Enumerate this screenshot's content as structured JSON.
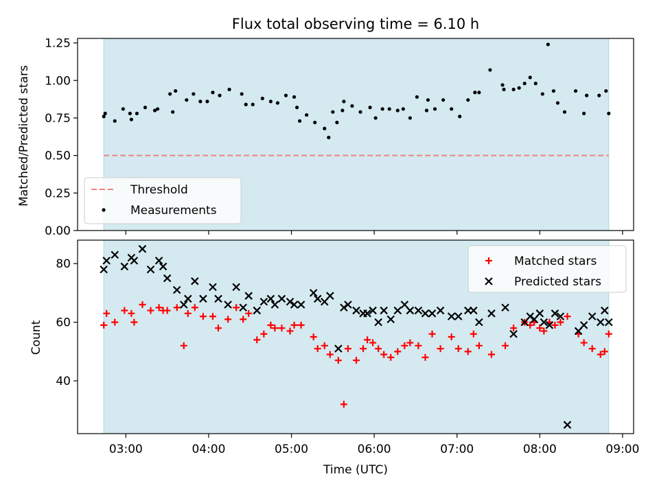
{
  "chart_data": [
    {
      "type": "scatter",
      "title": "Flux total observing time = 6.10 h",
      "ylabel": "Matched/Predicted stars",
      "xlabel": "",
      "ylim": [
        0,
        1.28
      ],
      "yticks": [
        "0.00",
        "0.25",
        "0.50",
        "0.75",
        "1.00",
        "1.25"
      ],
      "ytick_values": [
        0,
        0.25,
        0.5,
        0.75,
        1.0,
        1.25
      ],
      "shaded_span": [
        "02:44",
        "08:50"
      ],
      "threshold": 0.5,
      "legend": {
        "placement": "lower-left",
        "entries": [
          "Threshold",
          "Measurements"
        ]
      },
      "series": [
        {
          "name": "Measurements",
          "x": [
            "02:44",
            "02:45",
            "02:52",
            "02:58",
            "03:03",
            "03:04",
            "03:08",
            "03:14",
            "03:21",
            "03:23",
            "03:32",
            "03:34",
            "03:36",
            "03:44",
            "03:49",
            "03:54",
            "03:59",
            "04:03",
            "04:08",
            "04:15",
            "04:24",
            "04:27",
            "04:32",
            "04:39",
            "04:45",
            "04:50",
            "04:56",
            "05:02",
            "05:04",
            "05:06",
            "05:11",
            "05:17",
            "05:24",
            "05:27",
            "05:30",
            "05:33",
            "05:37",
            "05:38",
            "05:44",
            "05:50",
            "05:57",
            "06:01",
            "06:06",
            "06:11",
            "06:17",
            "06:21",
            "06:26",
            "06:31",
            "06:38",
            "06:39",
            "06:44",
            "06:50",
            "06:56",
            "07:02",
            "07:08",
            "07:13",
            "07:16",
            "07:24",
            "07:33",
            "07:34",
            "07:41",
            "07:45",
            "07:49",
            "07:53",
            "07:57",
            "08:02",
            "08:06",
            "08:10",
            "08:13",
            "08:18",
            "08:26",
            "08:32",
            "08:34",
            "08:43",
            "08:48",
            "08:50"
          ],
          "y": [
            0.76,
            0.78,
            0.73,
            0.81,
            0.78,
            0.74,
            0.78,
            0.82,
            0.8,
            0.81,
            0.91,
            0.79,
            0.93,
            0.87,
            0.91,
            0.86,
            0.86,
            0.92,
            0.9,
            0.94,
            0.91,
            0.84,
            0.84,
            0.88,
            0.86,
            0.85,
            0.9,
            0.89,
            0.82,
            0.73,
            0.77,
            0.72,
            0.68,
            0.62,
            0.79,
            0.72,
            0.8,
            0.86,
            0.83,
            0.79,
            0.82,
            0.75,
            0.81,
            0.81,
            0.8,
            0.81,
            0.75,
            0.89,
            0.8,
            0.87,
            0.81,
            0.87,
            0.81,
            0.76,
            0.87,
            0.92,
            0.92,
            1.07,
            0.97,
            0.94,
            0.94,
            0.95,
            0.98,
            1.02,
            0.98,
            0.91,
            1.24,
            0.93,
            0.85,
            0.79,
            0.93,
            0.78,
            0.9,
            0.9,
            0.93,
            0.78
          ]
        }
      ]
    },
    {
      "type": "scatter",
      "title": "",
      "ylabel": "Count",
      "xlabel": "Time (UTC)",
      "ylim": [
        22,
        88
      ],
      "yticks": [
        "40",
        "60",
        "80"
      ],
      "ytick_values": [
        40,
        60,
        80
      ],
      "xticks": [
        "03:00",
        "04:00",
        "05:00",
        "06:00",
        "07:00",
        "08:00",
        "09:00"
      ],
      "xtick_values": [
        "03:00",
        "04:00",
        "05:00",
        "06:00",
        "07:00",
        "08:00",
        "09:00"
      ],
      "xlim": [
        "02:25",
        "09:08"
      ],
      "shaded_span": [
        "02:44",
        "08:50"
      ],
      "legend": {
        "placement": "top-right",
        "entries": [
          "Matched stars",
          "Predicted stars"
        ]
      },
      "series": [
        {
          "name": "Matched stars",
          "x": [
            "02:44",
            "02:46",
            "02:52",
            "02:59",
            "03:04",
            "03:06",
            "03:12",
            "03:18",
            "03:24",
            "03:27",
            "03:30",
            "03:37",
            "03:42",
            "03:45",
            "03:50",
            "03:56",
            "04:03",
            "04:07",
            "04:14",
            "04:20",
            "04:25",
            "04:29",
            "04:35",
            "04:40",
            "04:45",
            "04:48",
            "04:53",
            "04:59",
            "05:02",
            "05:07",
            "05:16",
            "05:19",
            "05:24",
            "05:28",
            "05:34",
            "05:38",
            "05:41",
            "05:47",
            "05:52",
            "05:55",
            "05:59",
            "06:03",
            "06:07",
            "06:12",
            "06:17",
            "06:22",
            "06:26",
            "06:32",
            "06:37",
            "06:42",
            "06:48",
            "06:56",
            "07:01",
            "07:08",
            "07:12",
            "07:16",
            "07:25",
            "07:35",
            "07:41",
            "07:49",
            "07:53",
            "07:56",
            "08:00",
            "08:03",
            "08:07",
            "08:11",
            "08:15",
            "08:20",
            "08:28",
            "08:32",
            "08:38",
            "08:44",
            "08:47",
            "08:50"
          ],
          "y": [
            59,
            63,
            60,
            64,
            63,
            60,
            66,
            64,
            65,
            64,
            64,
            65,
            52,
            63,
            65,
            62,
            62,
            58,
            61,
            65,
            61,
            63,
            54,
            56,
            59,
            58,
            58,
            57,
            59,
            59,
            55,
            51,
            52,
            49,
            47,
            32,
            51,
            47,
            51,
            54,
            53,
            51,
            49,
            48,
            50,
            52,
            53,
            52,
            48,
            56,
            51,
            55,
            51,
            50,
            56,
            52,
            49,
            52,
            58,
            60,
            59,
            60,
            58,
            57,
            60,
            59,
            60,
            62,
            56,
            53,
            51,
            49,
            50,
            56
          ]
        },
        {
          "name": "Predicted stars",
          "x": [
            "02:44",
            "02:46",
            "02:52",
            "02:59",
            "03:04",
            "03:06",
            "03:12",
            "03:18",
            "03:24",
            "03:27",
            "03:30",
            "03:37",
            "03:42",
            "03:45",
            "03:50",
            "03:56",
            "04:03",
            "04:07",
            "04:14",
            "04:20",
            "04:25",
            "04:29",
            "04:35",
            "04:40",
            "04:45",
            "04:48",
            "04:53",
            "04:59",
            "05:02",
            "05:07",
            "05:16",
            "05:19",
            "05:24",
            "05:28",
            "05:34",
            "05:38",
            "05:41",
            "05:47",
            "05:52",
            "05:55",
            "05:59",
            "06:03",
            "06:07",
            "06:12",
            "06:17",
            "06:22",
            "06:26",
            "06:32",
            "06:37",
            "06:42",
            "06:48",
            "06:56",
            "07:01",
            "07:08",
            "07:12",
            "07:16",
            "07:25",
            "07:35",
            "07:41",
            "07:49",
            "07:53",
            "07:56",
            "08:00",
            "08:03",
            "08:07",
            "08:11",
            "08:15",
            "08:20",
            "08:28",
            "08:32",
            "08:38",
            "08:44",
            "08:47",
            "08:50"
          ],
          "y": [
            78,
            81,
            83,
            79,
            82,
            81,
            85,
            78,
            81,
            79,
            75,
            71,
            66,
            68,
            74,
            68,
            72,
            68,
            66,
            72,
            65,
            69,
            64,
            67,
            68,
            66,
            68,
            67,
            66,
            66,
            70,
            68,
            67,
            69,
            51,
            65,
            66,
            64,
            63,
            63,
            64,
            60,
            64,
            61,
            64,
            66,
            64,
            64,
            63,
            63,
            64,
            62,
            62,
            64,
            64,
            60,
            63,
            65,
            56,
            60,
            62,
            61,
            63,
            60,
            59,
            63,
            62,
            25,
            57,
            59,
            62,
            60,
            64,
            60
          ]
        }
      ]
    }
  ],
  "colors": {
    "shade": "#d4eaf0",
    "shade_edge": "#add8e6",
    "threshold": "#f08080",
    "matched": "#ff0000",
    "predicted": "#000000",
    "measurements": "#000000"
  }
}
